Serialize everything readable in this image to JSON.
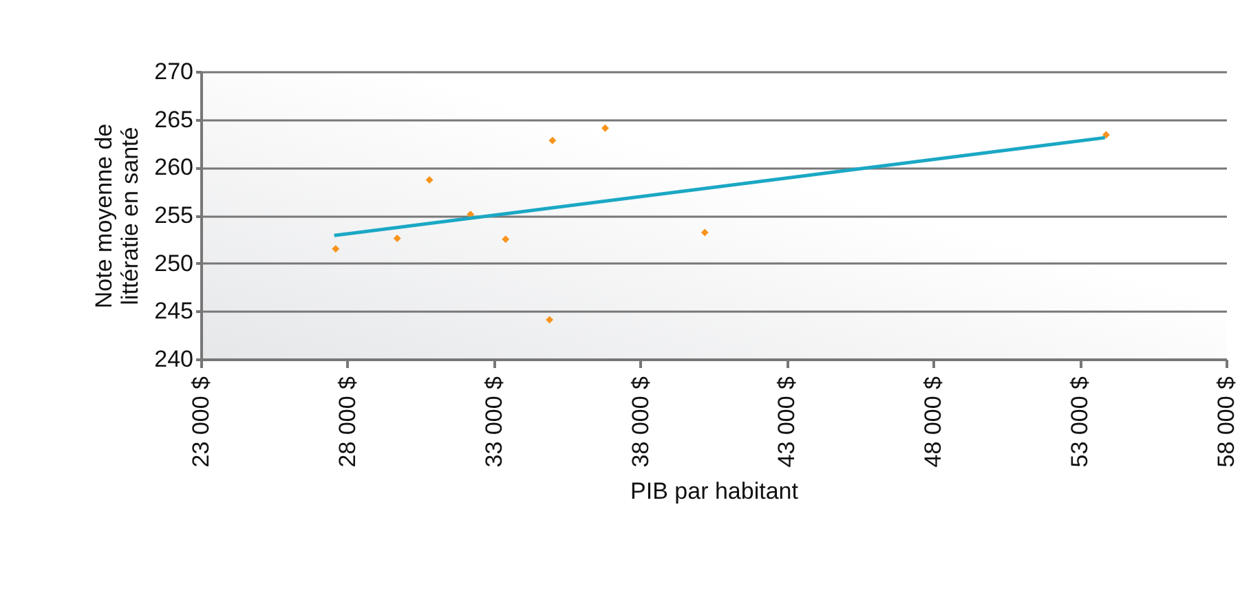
{
  "chart_data": {
    "type": "scatter",
    "xlabel": "PIB par habitant",
    "ylabel": "Note moyenne de\nlittératie en santé",
    "xlim": [
      23000,
      58000
    ],
    "xticks": [
      {
        "value": 23000,
        "label": "23 000 $"
      },
      {
        "value": 28000,
        "label": "28 000 $"
      },
      {
        "value": 33000,
        "label": "33 000 $"
      },
      {
        "value": 38000,
        "label": "38 000 $"
      },
      {
        "value": 43000,
        "label": "43 000 $"
      },
      {
        "value": 48000,
        "label": "48 000 $"
      },
      {
        "value": 53000,
        "label": "53 000 $"
      },
      {
        "value": 58000,
        "label": "58 000 $"
      }
    ],
    "ylim": [
      240,
      270
    ],
    "yticks": [
      240,
      245,
      250,
      255,
      260,
      265,
      270
    ],
    "grid": "y",
    "marker": "diamond",
    "series": [
      {
        "color": "#f7941d",
        "x": [
          27600,
          29700,
          30800,
          32200,
          33400,
          35000,
          34900,
          36800,
          40200,
          53900
        ],
        "values": [
          251.5,
          252.6,
          258.7,
          255.1,
          252.5,
          262.8,
          244.1,
          264.1,
          253.2,
          263.4
        ]
      },
      {
        "type": "line",
        "marker": "none",
        "color": "#1aa8c4",
        "x": [
          27550,
          53860
        ],
        "values": [
          252.9,
          263.1
        ]
      }
    ]
  }
}
